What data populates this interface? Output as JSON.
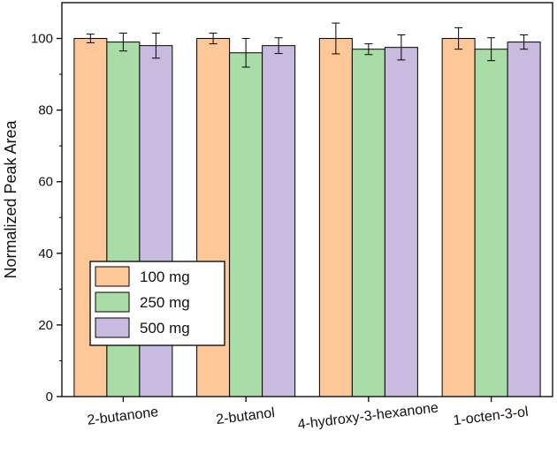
{
  "chart_data": {
    "type": "bar",
    "categories": [
      "2-butanone",
      "2-butanol",
      "4-hydroxy-3-hexanone",
      "1-octen-3-ol"
    ],
    "series": [
      {
        "name": "100 mg",
        "color": "#fdc797",
        "values": [
          100,
          100,
          100,
          100
        ],
        "errors": [
          1.2,
          1.5,
          4.3,
          3.0
        ]
      },
      {
        "name": "250 mg",
        "color": "#a9dca7",
        "values": [
          99,
          96,
          97,
          97
        ],
        "errors": [
          2.5,
          4.0,
          1.5,
          3.2
        ]
      },
      {
        "name": "500 mg",
        "color": "#c9bbe0",
        "values": [
          98,
          98,
          97.5,
          99
        ],
        "errors": [
          3.5,
          2.2,
          3.5,
          2.0
        ]
      }
    ],
    "ylabel": "Normalized Peak Area",
    "xlabel": "",
    "ylim": [
      0,
      110
    ],
    "yticks": [
      0,
      20,
      40,
      60,
      80,
      100
    ],
    "grid": false,
    "legend": "bottom-left"
  }
}
